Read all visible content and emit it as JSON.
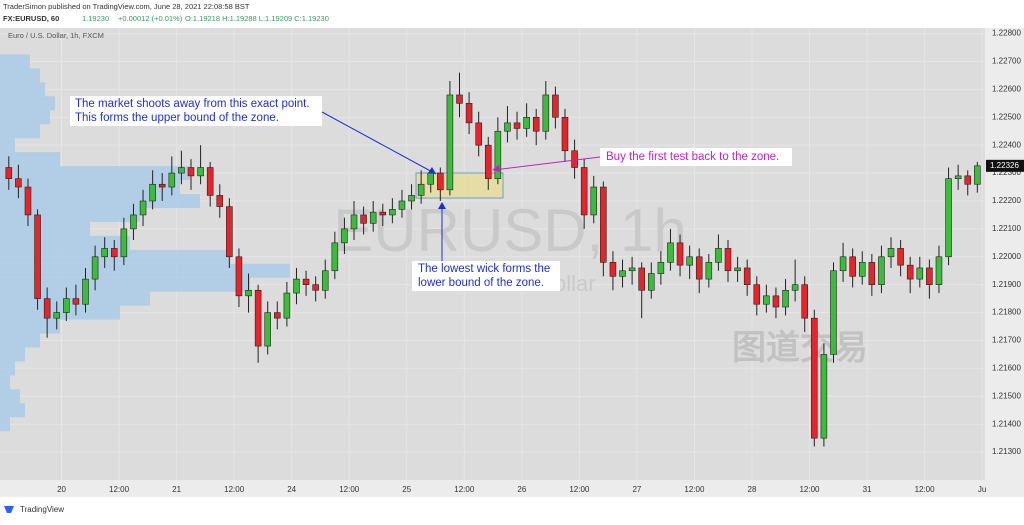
{
  "header": {
    "publisher": "TraderSimon published on TradingView.com, June 28, 2021 22:08:58 BST",
    "symbol": "FX:EURUSD, 60",
    "last": "1.19230",
    "change": "+0.00012 (+0.01%)",
    "ohlc": "O:1.19218 H:1.19288 L:1.19209 C:1.19230"
  },
  "chart_data": {
    "type": "candlestick",
    "title": "Euro / U.S. Dollar, 1h, FXCM",
    "watermark": "EURUSD, 1h",
    "watermark_subtitle": "Euro / U.S. Dollar",
    "up_color": "#3dbb3a",
    "down_color": "#e2262c",
    "grid": true,
    "open": [
      1.2232,
      1.2228,
      1.2225,
      1.2215,
      1.2185,
      1.2178,
      1.218,
      1.2185,
      1.2183,
      1.2192,
      1.22,
      1.2203,
      1.22,
      1.221,
      1.2215,
      1.222,
      1.2226,
      1.2225,
      1.223,
      1.2232,
      1.2229,
      1.2232,
      1.2222,
      1.2218,
      1.22,
      1.2186,
      1.2188,
      1.2168,
      1.218,
      1.2178,
      1.2187,
      1.2192,
      1.219,
      1.2188,
      1.2195,
      1.2205,
      1.221,
      1.2215,
      1.2212,
      1.2216,
      1.2215,
      1.2217,
      1.222,
      1.2222,
      1.2226,
      1.223,
      1.2224,
      1.2258,
      1.2255,
      1.2248,
      1.224,
      1.2228,
      1.2245,
      1.2248,
      1.2246,
      1.225,
      1.2245,
      1.2258,
      1.225,
      1.2238,
      1.2232,
      1.2215,
      1.2225,
      1.2198,
      1.2193,
      1.2195,
      1.2196,
      1.2188,
      1.2194,
      1.2198,
      1.2205,
      1.2197,
      1.22,
      1.2192,
      1.2198,
      1.2203,
      1.2195,
      1.2196,
      1.219,
      1.2183,
      1.2186,
      1.2182,
      1.2188,
      1.219,
      1.2178,
      1.2135,
      1.2165,
      1.2195,
      1.22,
      1.2193,
      1.2198,
      1.219,
      1.22,
      1.2203,
      1.2197,
      1.2192,
      1.2196,
      1.219,
      1.22,
      1.2228,
      1.2229,
      1.2226
    ],
    "high": [
      1.2236,
      1.2233,
      1.2228,
      1.2217,
      1.2189,
      1.2184,
      1.2189,
      1.219,
      1.2196,
      1.2204,
      1.2207,
      1.2206,
      1.2214,
      1.2219,
      1.2224,
      1.2231,
      1.223,
      1.2236,
      1.2238,
      1.2235,
      1.224,
      1.2234,
      1.2226,
      1.2221,
      1.2203,
      1.2194,
      1.219,
      1.2184,
      1.2184,
      1.2191,
      1.2196,
      1.2195,
      1.2193,
      1.2199,
      1.2209,
      1.2214,
      1.222,
      1.2218,
      1.222,
      1.2219,
      1.2221,
      1.2224,
      1.2226,
      1.2231,
      1.2231,
      1.2232,
      1.2263,
      1.2266,
      1.2259,
      1.2252,
      1.2243,
      1.225,
      1.2254,
      1.2252,
      1.2255,
      1.2253,
      1.2263,
      1.2261,
      1.2253,
      1.2242,
      1.2235,
      1.2229,
      1.2227,
      1.2202,
      1.2199,
      1.22,
      1.2198,
      1.2198,
      1.2202,
      1.221,
      1.2208,
      1.2204,
      1.2203,
      1.2201,
      1.2208,
      1.2206,
      1.22,
      1.2199,
      1.2193,
      1.219,
      1.2189,
      1.2192,
      1.2199,
      1.2193,
      1.2181,
      1.2169,
      1.2198,
      1.2205,
      1.2203,
      1.2202,
      1.2201,
      1.2204,
      1.2207,
      1.2206,
      1.22,
      1.22,
      1.2199,
      1.2204,
      1.2232,
      1.2233,
      1.2231,
      1.2234
    ],
    "low": [
      1.2224,
      1.2221,
      1.2211,
      1.2181,
      1.2171,
      1.2174,
      1.2177,
      1.2179,
      1.218,
      1.2188,
      1.2196,
      1.2195,
      1.2197,
      1.2206,
      1.2211,
      1.2217,
      1.222,
      1.2222,
      1.2226,
      1.2224,
      1.2226,
      1.2218,
      1.2214,
      1.2196,
      1.2182,
      1.218,
      1.2162,
      1.2165,
      1.2174,
      1.2175,
      1.2183,
      1.2186,
      1.2184,
      1.2185,
      1.2192,
      1.2201,
      1.2206,
      1.2208,
      1.2209,
      1.2211,
      1.2212,
      1.2214,
      1.2217,
      1.2219,
      1.2223,
      1.222,
      1.2222,
      1.225,
      1.2244,
      1.2236,
      1.2224,
      1.2226,
      1.2241,
      1.2242,
      1.2243,
      1.224,
      1.2242,
      1.2246,
      1.2234,
      1.2228,
      1.221,
      1.2212,
      1.2193,
      1.2188,
      1.2189,
      1.219,
      1.2178,
      1.2185,
      1.219,
      1.2195,
      1.2193,
      1.2192,
      1.2187,
      1.2189,
      1.2195,
      1.2191,
      1.2191,
      1.2186,
      1.2179,
      1.218,
      1.2178,
      1.2179,
      1.2184,
      1.2173,
      1.2132,
      1.2132,
      1.2162,
      1.2191,
      1.2189,
      1.219,
      1.2186,
      1.2187,
      1.2196,
      1.2193,
      1.2187,
      1.2189,
      1.2185,
      1.2187,
      1.2197,
      1.2224,
      1.2222,
      1.2223
    ],
    "close": [
      1.2228,
      1.2225,
      1.2215,
      1.2185,
      1.2178,
      1.218,
      1.2185,
      1.2183,
      1.2192,
      1.22,
      1.2203,
      1.22,
      1.221,
      1.2215,
      1.222,
      1.2226,
      1.2225,
      1.223,
      1.2232,
      1.2229,
      1.2232,
      1.2222,
      1.2218,
      1.22,
      1.2186,
      1.2188,
      1.2168,
      1.218,
      1.2178,
      1.2187,
      1.2192,
      1.219,
      1.2188,
      1.2195,
      1.2205,
      1.221,
      1.2215,
      1.2212,
      1.2216,
      1.2215,
      1.2217,
      1.222,
      1.2222,
      1.2226,
      1.223,
      1.2224,
      1.2258,
      1.2255,
      1.2248,
      1.224,
      1.2228,
      1.2245,
      1.2248,
      1.2246,
      1.225,
      1.2245,
      1.2258,
      1.225,
      1.2238,
      1.2232,
      1.2215,
      1.2225,
      1.2198,
      1.2193,
      1.2195,
      1.2196,
      1.2188,
      1.2194,
      1.2198,
      1.2205,
      1.2197,
      1.22,
      1.2192,
      1.2198,
      1.2203,
      1.2195,
      1.2196,
      1.219,
      1.2183,
      1.2186,
      1.2182,
      1.2188,
      1.219,
      1.2178,
      1.2135,
      1.2165,
      1.2195,
      1.22,
      1.2193,
      1.2198,
      1.219,
      1.22,
      1.2203,
      1.2197,
      1.2192,
      1.2196,
      1.219,
      1.22,
      1.2228,
      1.2229,
      1.2226,
      1.22326
    ],
    "last_label": "1.22326",
    "xlim": [
      -0.5,
      101.8
    ],
    "xticks": [
      {
        "value": 5.5,
        "label": "20"
      },
      {
        "value": 11.5,
        "label": "12:00"
      },
      {
        "value": 17.5,
        "label": "21"
      },
      {
        "value": 23.5,
        "label": "12:00"
      },
      {
        "value": 29.5,
        "label": "24"
      },
      {
        "value": 35.5,
        "label": "12:00"
      },
      {
        "value": 41.5,
        "label": "25"
      },
      {
        "value": 47.5,
        "label": "12:00"
      },
      {
        "value": 53.5,
        "label": "26"
      },
      {
        "value": 59.5,
        "label": "12:00"
      },
      {
        "value": 65.5,
        "label": "27"
      },
      {
        "value": 71.5,
        "label": "12:00"
      },
      {
        "value": 77.5,
        "label": "28"
      },
      {
        "value": 83.5,
        "label": "12:00"
      },
      {
        "value": 89.5,
        "label": "31"
      },
      {
        "value": 95.5,
        "label": "12:00"
      },
      {
        "value": 101.5,
        "label": "Ju"
      }
    ],
    "ylim": [
      1.212,
      1.2282
    ],
    "yticks": [
      {
        "value": 1.228,
        "label": "1.22800"
      },
      {
        "value": 1.227,
        "label": "1.22700"
      },
      {
        "value": 1.226,
        "label": "1.22600"
      },
      {
        "value": 1.225,
        "label": "1.22500"
      },
      {
        "value": 1.224,
        "label": "1.22400"
      },
      {
        "value": 1.223,
        "label": "1.22300"
      },
      {
        "value": 1.222,
        "label": "1.22200"
      },
      {
        "value": 1.221,
        "label": "1.22100"
      },
      {
        "value": 1.22,
        "label": "1.22000"
      },
      {
        "value": 1.219,
        "label": "1.21900"
      },
      {
        "value": 1.218,
        "label": "1.21800"
      },
      {
        "value": 1.217,
        "label": "1.21700"
      },
      {
        "value": 1.216,
        "label": "1.21600"
      },
      {
        "value": 1.215,
        "label": "1.21500"
      },
      {
        "value": 1.214,
        "label": "1.21400"
      },
      {
        "value": 1.213,
        "label": "1.21300"
      }
    ],
    "volume_profile": {
      "color": "#a9cbe8",
      "xlim": [
        0,
        300
      ],
      "prices": [
        1.227,
        1.2265,
        1.226,
        1.2255,
        1.225,
        1.2245,
        1.224,
        1.2235,
        1.223,
        1.2225,
        1.222,
        1.2215,
        1.221,
        1.2205,
        1.22,
        1.2195,
        1.219,
        1.2185,
        1.218,
        1.2175,
        1.217,
        1.2165,
        1.216,
        1.2155,
        1.215,
        1.2145,
        1.214
      ],
      "values": [
        30,
        40,
        45,
        55,
        50,
        40,
        15,
        60,
        190,
        180,
        200,
        140,
        90,
        130,
        230,
        290,
        250,
        150,
        120,
        60,
        40,
        25,
        15,
        10,
        20,
        25,
        10
      ]
    }
  },
  "annotations": [
    {
      "lines": [
        "The market shoots away from this exact point.",
        "This forms the upper bound of the zone."
      ]
    },
    {
      "lines": [
        "The lowest wick forms the",
        "lower bound of the zone."
      ]
    },
    {
      "lines": [
        "Buy the first test back to the zone."
      ]
    }
  ],
  "corner_watermark": "图道交易",
  "footer": "TradingView"
}
